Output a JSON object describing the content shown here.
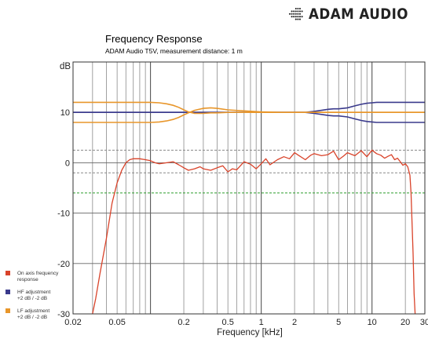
{
  "brand": {
    "name": "ADAM AUDIO",
    "logo_icon": "adam-audio-logo-icon"
  },
  "chart_data": {
    "type": "line",
    "title": "Frequency Response",
    "subtitle": "ADAM Audio T5V, measurement distance: 1 m",
    "xlabel": "Frequency [kHz]",
    "ylabel": "dB",
    "x_scale": "log",
    "xlim": [
      0.02,
      30
    ],
    "ylim": [
      -30,
      20
    ],
    "x_ticks": [
      {
        "v": 0.02,
        "label": "0.02"
      },
      {
        "v": 0.05,
        "label": "0.05"
      },
      {
        "v": 0.2,
        "label": "0.2"
      },
      {
        "v": 0.5,
        "label": "0.5"
      },
      {
        "v": 1,
        "label": "1"
      },
      {
        "v": 2,
        "label": "2"
      },
      {
        "v": 5,
        "label": "5"
      },
      {
        "v": 10,
        "label": "10"
      },
      {
        "v": 20,
        "label": "20"
      },
      {
        "v": 30,
        "label": "30"
      }
    ],
    "y_ticks": [
      {
        "v": 10,
        "label": "10"
      },
      {
        "v": 0,
        "label": "0"
      },
      {
        "v": -10,
        "label": "-10"
      },
      {
        "v": -20,
        "label": "-20"
      },
      {
        "v": -30,
        "label": "-30"
      }
    ],
    "grid": true,
    "legend_position": "left",
    "reference_lines": [
      {
        "y": 2.5,
        "color": "#888888",
        "style": "dashed"
      },
      {
        "y": -2,
        "color": "#888888",
        "style": "dashed"
      },
      {
        "y": -6,
        "color": "#2e9e2e",
        "style": "dashed"
      }
    ],
    "series": [
      {
        "name": "On axis frequency response",
        "color": "#d9432a",
        "x": [
          0.03,
          0.032,
          0.035,
          0.04,
          0.045,
          0.05,
          0.055,
          0.06,
          0.065,
          0.07,
          0.08,
          0.09,
          0.1,
          0.11,
          0.12,
          0.14,
          0.16,
          0.18,
          0.2,
          0.22,
          0.25,
          0.28,
          0.3,
          0.35,
          0.4,
          0.45,
          0.5,
          0.55,
          0.6,
          0.7,
          0.8,
          0.9,
          1.0,
          1.1,
          1.2,
          1.4,
          1.6,
          1.8,
          2.0,
          2.2,
          2.5,
          2.8,
          3.0,
          3.5,
          4.0,
          4.5,
          5.0,
          5.5,
          6.0,
          7.0,
          8.0,
          9.0,
          10,
          11,
          12,
          13,
          14,
          15,
          16,
          17,
          18,
          19,
          20,
          21,
          22,
          22.5,
          23,
          23.5,
          24,
          24.5
        ],
        "y": [
          -30,
          -27,
          -22,
          -15,
          -8,
          -4,
          -1.5,
          0,
          0.6,
          0.8,
          0.8,
          0.6,
          0.4,
          0,
          -0.2,
          0,
          0.2,
          -0.4,
          -1,
          -1.5,
          -1.2,
          -0.8,
          -1.2,
          -1.5,
          -1,
          -0.6,
          -1.8,
          -1.2,
          -1.4,
          0.2,
          -0.3,
          -1.2,
          -0.2,
          0.8,
          -0.4,
          0.6,
          1.2,
          0.8,
          2,
          1.4,
          0.6,
          1.5,
          1.8,
          1.4,
          1.6,
          2.3,
          0.6,
          1.3,
          2,
          1.4,
          2.4,
          1.2,
          2.5,
          1.8,
          1.5,
          0.9,
          1.3,
          1.6,
          0.6,
          0.9,
          0.2,
          -0.5,
          -0.2,
          -0.8,
          -2.5,
          -6,
          -12,
          -18,
          -26,
          -30
        ]
      },
      {
        "name": "HF adjustment +2 dB / -2 dB",
        "color": "#3a3a8c",
        "x": [
          0.02,
          1,
          2.5,
          3,
          3.5,
          4,
          4.5,
          5,
          6,
          7,
          8,
          9,
          10,
          11,
          12,
          14,
          16,
          20,
          25,
          30
        ],
        "y_upper": [
          10,
          10,
          10,
          10.2,
          10.4,
          10.6,
          10.7,
          10.7,
          10.9,
          11.3,
          11.6,
          11.8,
          11.9,
          12,
          12,
          12,
          12,
          12,
          12,
          12
        ],
        "y_lower": [
          10,
          10,
          10,
          9.8,
          9.6,
          9.4,
          9.3,
          9.3,
          9.1,
          8.7,
          8.4,
          8.2,
          8.1,
          8,
          8,
          8,
          8,
          8,
          8,
          8
        ]
      },
      {
        "name": "LF adjustment +2 dB / -2 dB",
        "color": "#e8962a",
        "x": [
          0.02,
          0.1,
          0.12,
          0.14,
          0.16,
          0.18,
          0.2,
          0.22,
          0.25,
          0.3,
          0.35,
          0.4,
          0.5,
          0.7,
          1,
          1.5,
          2,
          30
        ],
        "y_upper": [
          12,
          12,
          11.9,
          11.7,
          11.4,
          11,
          10.5,
          10.1,
          9.8,
          9.8,
          9.9,
          9.9,
          10,
          10,
          10,
          10,
          10,
          10
        ],
        "y_lower": [
          8,
          8,
          8.1,
          8.3,
          8.6,
          9,
          9.5,
          9.9,
          10.4,
          10.8,
          10.9,
          10.8,
          10.5,
          10.3,
          10.1,
          10,
          10,
          10
        ]
      }
    ]
  }
}
